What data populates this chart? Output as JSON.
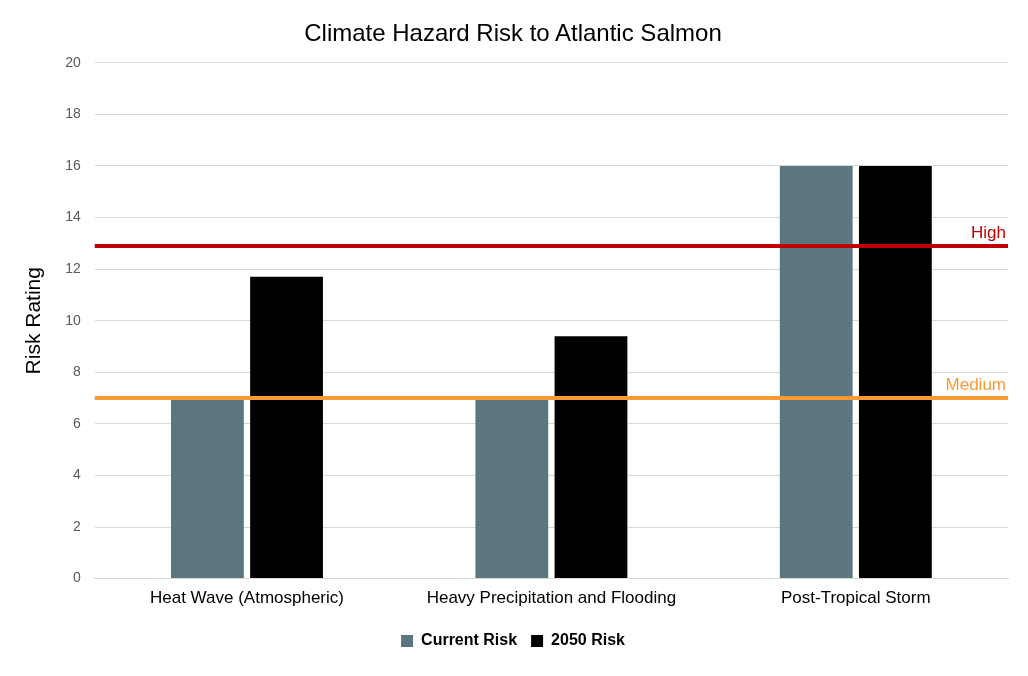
{
  "chart_data": {
    "type": "bar",
    "title": "Climate Hazard Risk to Atlantic Salmon",
    "ylabel": "Risk Rating",
    "categories": [
      "Heat Wave (Atmospheric)",
      "Heavy Precipitation and Flooding",
      "Post-Tropical Storm"
    ],
    "series": [
      {
        "name": "Current Risk",
        "color": "#5b7680",
        "values": [
          7,
          7,
          16
        ]
      },
      {
        "name": "2050 Risk",
        "color": "#000000",
        "values": [
          11.7,
          9.4,
          16
        ]
      }
    ],
    "ylim": [
      0,
      20
    ],
    "yticks": [
      0,
      2,
      4,
      6,
      8,
      10,
      12,
      14,
      16,
      18,
      20
    ],
    "grid": "y",
    "legend": "bottom",
    "ref_lines": [
      {
        "axis": "y",
        "value": 12.9,
        "label": "High",
        "color": "#c00000"
      },
      {
        "axis": "y",
        "value": 7,
        "label": "Medium",
        "color": "#ff9933"
      }
    ]
  }
}
